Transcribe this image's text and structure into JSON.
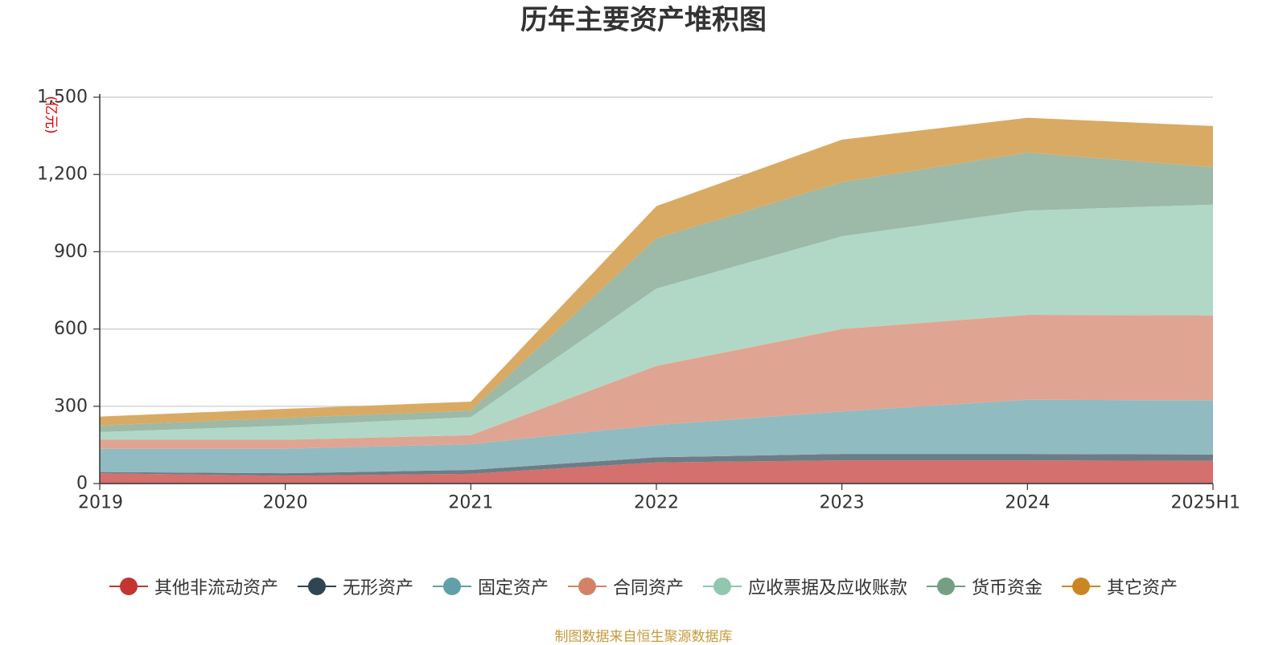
{
  "chart_data": {
    "type": "area",
    "stacked": true,
    "title": "历年主要资产堆积图",
    "unit_label": "(亿元)",
    "x": [
      "2019",
      "2020",
      "2021",
      "2022",
      "2023",
      "2024",
      "2025H1"
    ],
    "ylim": [
      0,
      1500
    ],
    "yticks": [
      "0",
      "300",
      "600",
      "900",
      "1,200",
      "1,500"
    ],
    "ytick_values": [
      0,
      300,
      600,
      900,
      1200,
      1500
    ],
    "grid": true,
    "legend_position": "bottom",
    "series": [
      {
        "name": "其他非流动资产",
        "color": "#c23531",
        "area_color": "#d4706d",
        "values": [
          40,
          30,
          38,
          82,
          90,
          90,
          88
        ]
      },
      {
        "name": "无形资产",
        "color": "#2f4554",
        "area_color": "#6d7d87",
        "values": [
          5,
          10,
          15,
          20,
          25,
          25,
          25
        ]
      },
      {
        "name": "固定资产",
        "color": "#61a0a8",
        "area_color": "#90bbc1",
        "values": [
          90,
          95,
          100,
          125,
          165,
          210,
          210
        ]
      },
      {
        "name": "合同资产",
        "color": "#d48265",
        "area_color": "#dfa592",
        "values": [
          35,
          35,
          35,
          230,
          320,
          330,
          330
        ]
      },
      {
        "name": "应收票据及应收账款",
        "color": "#91c7ae",
        "area_color": "#b1d8c6",
        "values": [
          30,
          55,
          70,
          300,
          360,
          405,
          430
        ]
      },
      {
        "name": "货币资金",
        "color": "#749f83",
        "area_color": "#9db9a7",
        "values": [
          25,
          30,
          25,
          195,
          210,
          225,
          145
        ]
      },
      {
        "name": "其它资产",
        "color": "#ca8622",
        "area_color": "#d9aa64",
        "values": [
          35,
          35,
          35,
          125,
          165,
          135,
          160
        ]
      }
    ]
  },
  "source_note": "制图数据来自恒生聚源数据库"
}
